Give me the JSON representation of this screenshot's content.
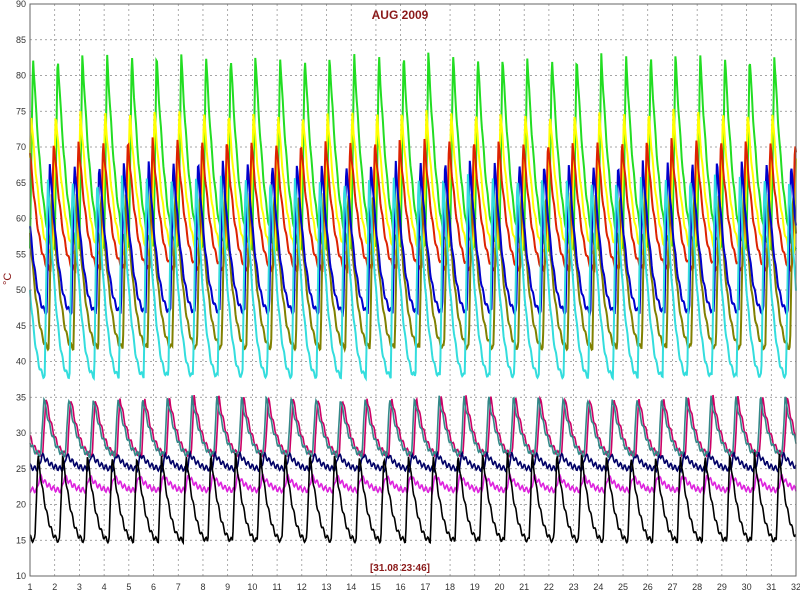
{
  "chart_data": {
    "type": "line",
    "title": "AUG 2009",
    "ylabel": "°C",
    "stamp": "[31.08 23:46]",
    "xlim": [
      1,
      32
    ],
    "ylim": [
      10,
      90
    ],
    "xticks": [
      "1",
      "2",
      "3",
      "4",
      "5",
      "6",
      "7",
      "8",
      "9",
      "10",
      "11",
      "12",
      "13",
      "14",
      "15",
      "16",
      "17",
      "18",
      "19",
      "20",
      "21",
      "22",
      "23",
      "24",
      "25",
      "26",
      "27",
      "28",
      "29",
      "30",
      "31",
      "32"
    ],
    "yticks": [
      "10",
      "15",
      "20",
      "25",
      "30",
      "35",
      "40",
      "45",
      "50",
      "55",
      "60",
      "65",
      "70",
      "75",
      "80",
      "85",
      "90"
    ],
    "grid": true,
    "series_profiles": [
      {
        "color": "#22dd22",
        "min": 56,
        "peak": 83
      },
      {
        "color": "#ffff00",
        "min": 55,
        "peak": 75
      },
      {
        "color": "#dd2200",
        "min": 53,
        "peak": 71
      },
      {
        "color": "#808000",
        "min": 42,
        "peak": 64
      },
      {
        "color": "#0000cc",
        "min": 47,
        "peak": 68
      },
      {
        "color": "#33dddd",
        "min": 38,
        "peak": 66
      },
      {
        "color": "#cc0066",
        "min": 27,
        "peak": 35
      },
      {
        "color": "#338888",
        "min": 27,
        "peak": 35
      },
      {
        "color": "#000066",
        "min": 25,
        "peak": 27
      },
      {
        "color": "#dd22dd",
        "min": 22,
        "peak": 24
      },
      {
        "color": "#000000",
        "min": 15,
        "peak": 27
      }
    ]
  }
}
